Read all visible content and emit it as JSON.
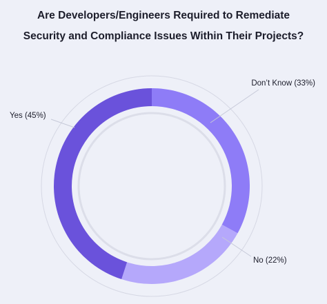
{
  "chart_data": {
    "type": "pie",
    "title_lines": [
      "Are Developers/Engineers Required to Remediate",
      "Security and Compliance Issues Within Their Projects?"
    ],
    "slices": [
      {
        "label": "Don’t Know (33%)",
        "value": 33,
        "color": "#8e7cf7"
      },
      {
        "label": "No (22%)",
        "value": 22,
        "color": "#b5a8fb"
      },
      {
        "label": "Yes (45%)",
        "value": 45,
        "color": "#6a52db"
      }
    ]
  }
}
